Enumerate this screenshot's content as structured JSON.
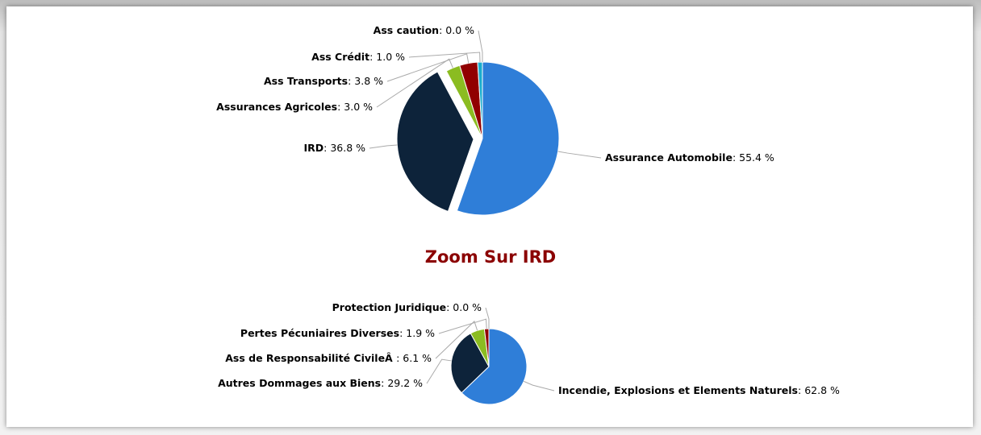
{
  "chart_data": [
    {
      "type": "pie",
      "categories": [
        "Assurance Automobile",
        "IRD",
        "Assurances Agricoles",
        "Ass Transports",
        "Ass Crédit",
        "Ass caution"
      ],
      "values": [
        55.4,
        36.8,
        3.0,
        3.8,
        1.0,
        0.0
      ],
      "value_labels": [
        "55.4 %",
        "36.8 %",
        "3.0 %",
        "3.8 %",
        "1.0 %",
        "0.0 %"
      ],
      "colors": [
        "#2f7ed8",
        "#0d233a",
        "#8bbc21",
        "#910000",
        "#1aadce",
        "#492970"
      ],
      "sliced": "IRD"
    },
    {
      "type": "pie",
      "title": "Zoom Sur IRD",
      "categories": [
        "Incendie, Explosions et Elements Naturels",
        "Autres Dommages aux Biens",
        "Ass de Responsabilité CivileÂ ",
        "Pertes Pécuniaires Diverses",
        "Protection Juridique"
      ],
      "values": [
        62.8,
        29.2,
        6.1,
        1.9,
        0.0
      ],
      "value_labels": [
        "62.8 %",
        "29.2 %",
        "6.1 %",
        "1.9 %",
        "0.0 %"
      ],
      "colors": [
        "#2f7ed8",
        "#0d233a",
        "#8bbc21",
        "#910000",
        "#1aadce"
      ]
    }
  ]
}
